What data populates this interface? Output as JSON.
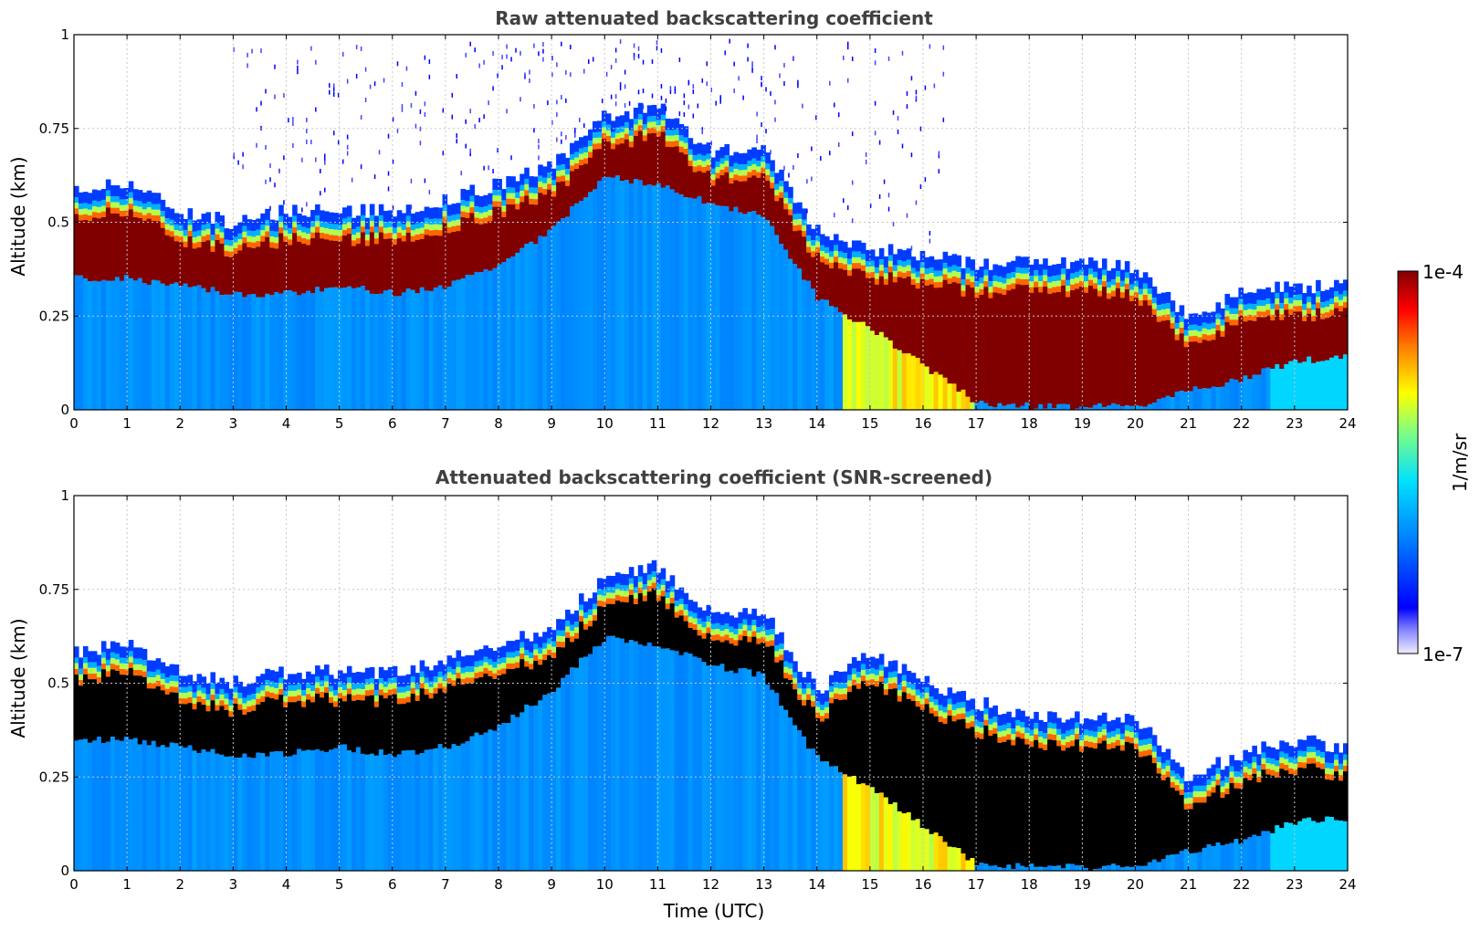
{
  "chart_data": [
    {
      "type": "heatmap",
      "title": "Raw attenuated backscattering coefficient",
      "xlabel": "",
      "ylabel": "Altitude (km)",
      "xlim": [
        0,
        24
      ],
      "ylim": [
        0,
        1
      ],
      "xticks": [
        "0",
        "1",
        "2",
        "3",
        "4",
        "5",
        "6",
        "7",
        "8",
        "9",
        "10",
        "11",
        "12",
        "13",
        "14",
        "15",
        "16",
        "17",
        "18",
        "19",
        "20",
        "21",
        "22",
        "23",
        "24"
      ],
      "yticks": [
        "0",
        "0.25",
        "0.5",
        "0.75",
        "1"
      ],
      "grid": true,
      "screened": false,
      "layer": {
        "time_utc": [
          0,
          1,
          2,
          3,
          4,
          5,
          6,
          7,
          8,
          9,
          10,
          11,
          12,
          13,
          14,
          15,
          16,
          17,
          18,
          19,
          20,
          21,
          22,
          23,
          24
        ],
        "top_km": [
          0.55,
          0.58,
          0.5,
          0.47,
          0.5,
          0.5,
          0.5,
          0.53,
          0.57,
          0.62,
          0.75,
          0.78,
          0.66,
          0.66,
          0.45,
          0.4,
          0.38,
          0.36,
          0.36,
          0.36,
          0.35,
          0.22,
          0.28,
          0.3,
          0.3
        ],
        "base_km": [
          0.35,
          0.35,
          0.33,
          0.31,
          0.31,
          0.33,
          0.31,
          0.33,
          0.38,
          0.48,
          0.62,
          0.6,
          0.55,
          0.52,
          0.3,
          0.22,
          0.12,
          0.02,
          0.01,
          0.01,
          0.01,
          0.05,
          0.08,
          0.13,
          0.14
        ]
      }
    },
    {
      "type": "heatmap",
      "title": "Attenuated backscattering coefficient (SNR-screened)",
      "xlabel": "Time (UTC)",
      "ylabel": "Altitude (km)",
      "xlim": [
        0,
        24
      ],
      "ylim": [
        0,
        1
      ],
      "xticks": [
        "0",
        "1",
        "2",
        "3",
        "4",
        "5",
        "6",
        "7",
        "8",
        "9",
        "10",
        "11",
        "12",
        "13",
        "14",
        "15",
        "16",
        "17",
        "18",
        "19",
        "20",
        "21",
        "22",
        "23",
        "24"
      ],
      "yticks": [
        "0",
        "0.25",
        "0.5",
        "0.75",
        "1"
      ],
      "grid": true,
      "screened": true,
      "layer": {
        "time_utc": [
          0,
          1,
          2,
          3,
          4,
          5,
          6,
          7,
          8,
          9,
          10,
          11,
          12,
          13,
          14,
          15,
          16,
          17,
          18,
          19,
          20,
          21,
          22,
          23,
          24
        ],
        "top_km": [
          0.55,
          0.58,
          0.5,
          0.47,
          0.5,
          0.5,
          0.5,
          0.53,
          0.57,
          0.62,
          0.75,
          0.78,
          0.66,
          0.66,
          0.45,
          0.55,
          0.48,
          0.42,
          0.38,
          0.38,
          0.38,
          0.22,
          0.28,
          0.32,
          0.3
        ],
        "base_km": [
          0.35,
          0.35,
          0.33,
          0.31,
          0.31,
          0.33,
          0.31,
          0.33,
          0.38,
          0.48,
          0.62,
          0.6,
          0.55,
          0.52,
          0.3,
          0.22,
          0.12,
          0.02,
          0.01,
          0.01,
          0.01,
          0.05,
          0.08,
          0.13,
          0.14
        ]
      }
    }
  ],
  "colorbar": {
    "label": "1/m/sr",
    "max_label": "1e-4",
    "min_label": "1e-7",
    "scale": "log",
    "colormap": "jet"
  }
}
